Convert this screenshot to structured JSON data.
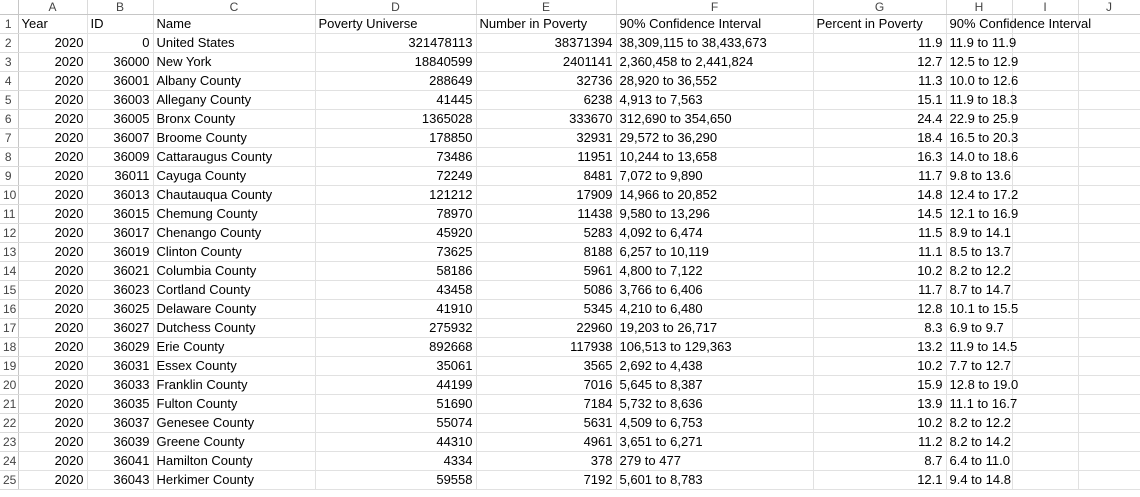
{
  "columns": [
    "A",
    "B",
    "C",
    "D",
    "E",
    "F",
    "G",
    "H",
    "I",
    "J"
  ],
  "headers": [
    "Year",
    "ID",
    "Name",
    "Poverty Universe",
    "Number in Poverty",
    "90% Confidence Interval",
    "Percent in Poverty",
    "90% Confidence Interval",
    "",
    ""
  ],
  "rows": [
    [
      "2020",
      "0",
      "United States",
      "321478113",
      "38371394",
      "38,309,115 to 38,433,673",
      "11.9",
      "11.9 to 11.9"
    ],
    [
      "2020",
      "36000",
      "New York",
      "18840599",
      "2401141",
      "2,360,458 to 2,441,824",
      "12.7",
      "12.5 to 12.9"
    ],
    [
      "2020",
      "36001",
      "Albany County",
      "288649",
      "32736",
      "28,920 to 36,552",
      "11.3",
      "10.0 to 12.6"
    ],
    [
      "2020",
      "36003",
      "Allegany County",
      "41445",
      "6238",
      "4,913 to 7,563",
      "15.1",
      "11.9 to 18.3"
    ],
    [
      "2020",
      "36005",
      "Bronx County",
      "1365028",
      "333670",
      "312,690 to 354,650",
      "24.4",
      "22.9 to 25.9"
    ],
    [
      "2020",
      "36007",
      "Broome County",
      "178850",
      "32931",
      "29,572 to 36,290",
      "18.4",
      "16.5 to 20.3"
    ],
    [
      "2020",
      "36009",
      "Cattaraugus County",
      "73486",
      "11951",
      "10,244 to 13,658",
      "16.3",
      "14.0 to 18.6"
    ],
    [
      "2020",
      "36011",
      "Cayuga County",
      "72249",
      "8481",
      "7,072 to 9,890",
      "11.7",
      "9.8 to 13.6"
    ],
    [
      "2020",
      "36013",
      "Chautauqua County",
      "121212",
      "17909",
      "14,966 to 20,852",
      "14.8",
      "12.4 to 17.2"
    ],
    [
      "2020",
      "36015",
      "Chemung County",
      "78970",
      "11438",
      "9,580 to 13,296",
      "14.5",
      "12.1 to 16.9"
    ],
    [
      "2020",
      "36017",
      "Chenango County",
      "45920",
      "5283",
      "4,092 to 6,474",
      "11.5",
      "8.9 to 14.1"
    ],
    [
      "2020",
      "36019",
      "Clinton County",
      "73625",
      "8188",
      "6,257 to 10,119",
      "11.1",
      "8.5 to 13.7"
    ],
    [
      "2020",
      "36021",
      "Columbia County",
      "58186",
      "5961",
      "4,800 to 7,122",
      "10.2",
      "8.2 to 12.2"
    ],
    [
      "2020",
      "36023",
      "Cortland County",
      "43458",
      "5086",
      "3,766 to 6,406",
      "11.7",
      "8.7 to 14.7"
    ],
    [
      "2020",
      "36025",
      "Delaware County",
      "41910",
      "5345",
      "4,210 to 6,480",
      "12.8",
      "10.1 to 15.5"
    ],
    [
      "2020",
      "36027",
      "Dutchess County",
      "275932",
      "22960",
      "19,203 to 26,717",
      "8.3",
      "6.9 to 9.7"
    ],
    [
      "2020",
      "36029",
      "Erie County",
      "892668",
      "117938",
      "106,513 to 129,363",
      "13.2",
      "11.9 to 14.5"
    ],
    [
      "2020",
      "36031",
      "Essex County",
      "35061",
      "3565",
      "2,692 to 4,438",
      "10.2",
      "7.7 to 12.7"
    ],
    [
      "2020",
      "36033",
      "Franklin County",
      "44199",
      "7016",
      "5,645 to 8,387",
      "15.9",
      "12.8 to 19.0"
    ],
    [
      "2020",
      "36035",
      "Fulton County",
      "51690",
      "7184",
      "5,732 to 8,636",
      "13.9",
      "11.1 to 16.7"
    ],
    [
      "2020",
      "36037",
      "Genesee County",
      "55074",
      "5631",
      "4,509 to 6,753",
      "10.2",
      "8.2 to 12.2"
    ],
    [
      "2020",
      "36039",
      "Greene County",
      "44310",
      "4961",
      "3,651 to 6,271",
      "11.2",
      "8.2 to 14.2"
    ],
    [
      "2020",
      "36041",
      "Hamilton County",
      "4334",
      "378",
      "279 to 477",
      "8.7",
      "6.4 to 11.0"
    ],
    [
      "2020",
      "36043",
      "Herkimer County",
      "59558",
      "7192",
      "5,601 to 8,783",
      "12.1",
      "9.4 to 14.8"
    ]
  ]
}
